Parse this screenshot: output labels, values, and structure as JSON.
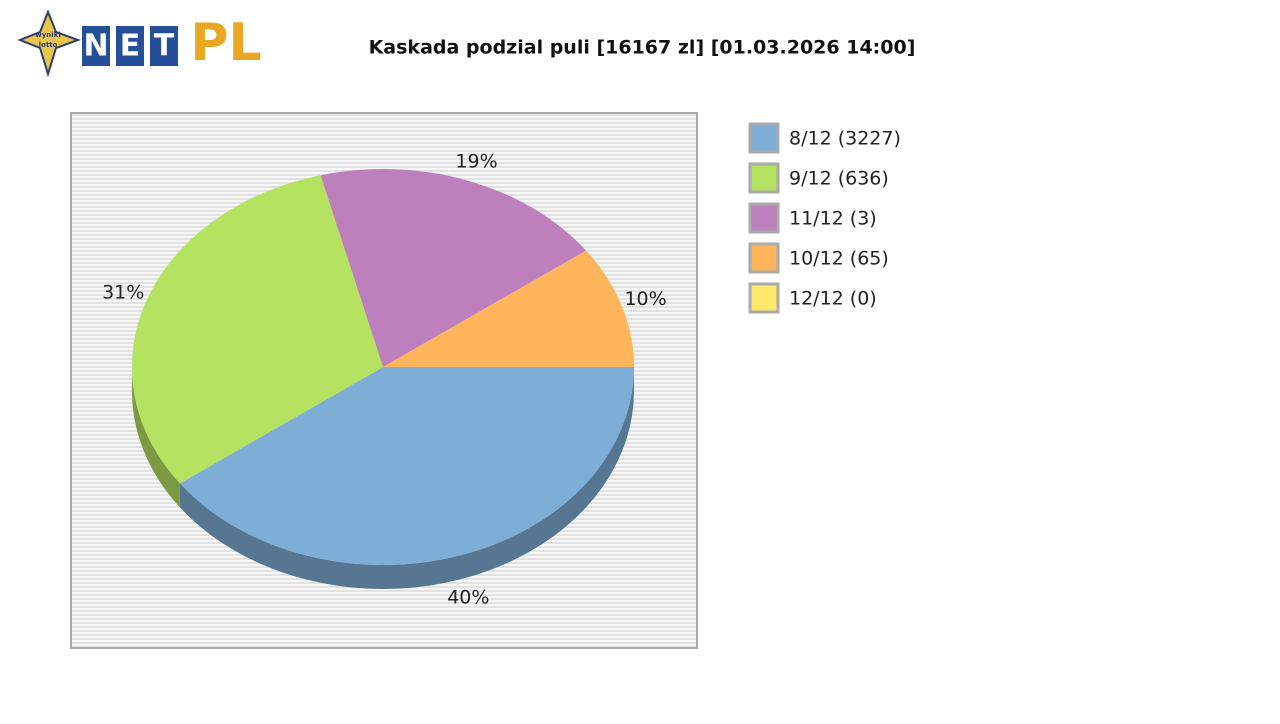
{
  "logo": {
    "badge": [
      "wyniki",
      "lotto"
    ],
    "letters": [
      "N",
      "E",
      "T"
    ],
    "suffix": "PL"
  },
  "chart_data": {
    "type": "pie",
    "title": "Kaskada podzial puli [16167 zl] [01.03.2026 14:00]",
    "categories": [
      "8/12 (3227)",
      "9/12 (636)",
      "11/12 (3)",
      "10/12 (65)",
      "12/12 (0)"
    ],
    "values": [
      40,
      31,
      19,
      10,
      0
    ],
    "value_labels": [
      "40%",
      "31%",
      "19%",
      "10%",
      null
    ],
    "colors": [
      "#7eaed5",
      "#b5e261",
      "#be7fbd",
      "#feb55c",
      "#fde96b"
    ],
    "legend": "right"
  }
}
